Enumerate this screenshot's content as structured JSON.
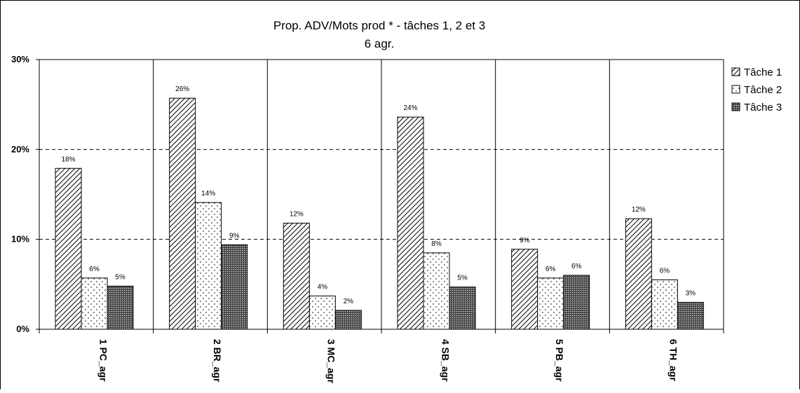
{
  "chart_data": {
    "type": "bar",
    "title": "Prop. ADV/Mots prod * - tâches 1, 2 et 3",
    "subtitle": "6 agr.",
    "categories": [
      "1 PC_agr",
      "2 BR_agr",
      "3 MC_agr",
      "4 SB_agr",
      "5 PB_agr",
      "6 TH_agr"
    ],
    "series": [
      {
        "name": "Tâche 1",
        "values": [
          17.9,
          25.7,
          11.8,
          23.6,
          8.9,
          12.3
        ],
        "labels": [
          "18%",
          "26%",
          "12%",
          "24%",
          "9%",
          "12%"
        ],
        "pattern": "diagonal-hatch"
      },
      {
        "name": "Tâche 2",
        "values": [
          5.7,
          14.1,
          3.7,
          8.5,
          5.7,
          5.5
        ],
        "labels": [
          "6%",
          "14%",
          "4%",
          "8%",
          "6%",
          "6%"
        ],
        "pattern": "dots"
      },
      {
        "name": "Tâche 3",
        "values": [
          4.8,
          9.4,
          2.1,
          4.7,
          6.0,
          3.0
        ],
        "labels": [
          "5%",
          "9%",
          "2%",
          "5%",
          "6%",
          "3%"
        ],
        "pattern": "crosshatch"
      }
    ],
    "yticks": [
      "0%",
      "10%",
      "20%",
      "30%"
    ],
    "ylim": [
      0,
      30
    ],
    "grid": "dashed-horizontal",
    "legend": "right"
  }
}
